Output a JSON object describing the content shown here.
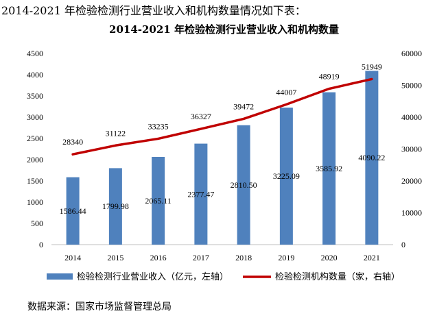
{
  "intro_text": "2014-2021 年检验检测行业营业收入和机构数量情况如下表：",
  "source_text": "数据来源：国家市场监督管理总局",
  "colors": {
    "bar": "#4f81bd",
    "line": "#c00000",
    "grid": "#d9d9d9",
    "axis": "#bfbfbf"
  },
  "chart_data": {
    "type": "bar",
    "title": "2014-2021 年检验检测行业营业收入和机构数量",
    "categories": [
      "2014",
      "2015",
      "2016",
      "2017",
      "2018",
      "2019",
      "2020",
      "2021"
    ],
    "series": [
      {
        "name": "检验检测行业营业收入（亿元，左轴）",
        "type": "bar",
        "axis": "left",
        "values": [
          1586.44,
          1799.98,
          2065.11,
          2377.47,
          2810.5,
          3225.09,
          3585.92,
          4090.22
        ],
        "labels": [
          "1586.44",
          "1799.98",
          "2065.11",
          "2377.47",
          "2810.50",
          "3225.09",
          "3585.92",
          "4090.22"
        ]
      },
      {
        "name": "检验检测机构数量（家，右轴）",
        "type": "line",
        "axis": "right",
        "values": [
          28340,
          31122,
          33235,
          36327,
          39472,
          44007,
          48919,
          51949
        ],
        "labels": [
          "28340",
          "31122",
          "33235",
          "36327",
          "39472",
          "44007",
          "48919",
          "51949"
        ]
      }
    ],
    "y_left": {
      "min": 0,
      "max": 4500,
      "ticks": [
        "0",
        "500",
        "1000",
        "1500",
        "2000",
        "2500",
        "3000",
        "3500",
        "4000",
        "4500"
      ]
    },
    "y_right": {
      "min": 0,
      "max": 60000,
      "ticks": [
        "0",
        "10000",
        "20000",
        "30000",
        "40000",
        "50000",
        "60000"
      ]
    },
    "grid": false,
    "legend_position": "bottom"
  }
}
